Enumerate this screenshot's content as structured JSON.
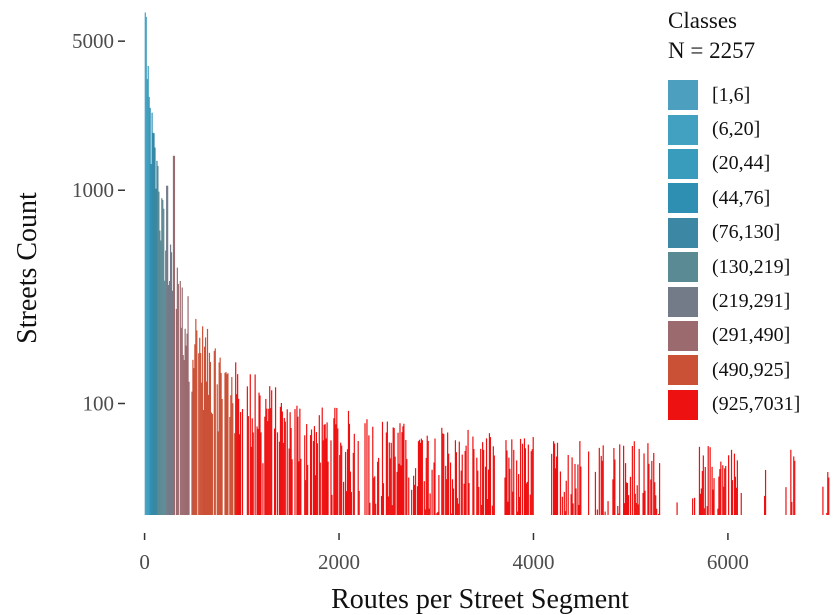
{
  "chart_data": {
    "type": "bar",
    "xlabel": "Routes per Street Segment",
    "ylabel": "Streets Count",
    "x_ticks": [
      0,
      2000,
      4000,
      6000
    ],
    "y_ticks": [
      100,
      1000,
      5000
    ],
    "y_scale": "log",
    "xlim": [
      -150,
      7050
    ],
    "ylim": [
      30,
      7000
    ],
    "grid": false,
    "legend_position": "right",
    "legend": {
      "title_line1": "Classes",
      "title_line2": "N = 2257",
      "classes": [
        {
          "label": "[1,6]",
          "color": "#4c9fbf",
          "range": [
            1,
            6
          ]
        },
        {
          "label": "(6,20]",
          "color": "#42a1c0",
          "range": [
            6,
            20
          ]
        },
        {
          "label": "(20,44]",
          "color": "#3a9cbd",
          "range": [
            20,
            44
          ]
        },
        {
          "label": "(44,76]",
          "color": "#2f8fb2",
          "range": [
            44,
            76
          ]
        },
        {
          "label": "(76,130]",
          "color": "#3b87a4",
          "range": [
            76,
            130
          ]
        },
        {
          "label": "(130,219]",
          "color": "#5a8a94",
          "range": [
            130,
            219
          ]
        },
        {
          "label": "(219,291]",
          "color": "#737a88",
          "range": [
            219,
            291
          ]
        },
        {
          "label": "(291,490]",
          "color": "#9a6a6f",
          "range": [
            291,
            490
          ]
        },
        {
          "label": "(490,925]",
          "color": "#cb5136",
          "range": [
            490,
            925
          ]
        },
        {
          "label": "(925,7031]",
          "color": "#ee1111",
          "range": [
            925,
            7031
          ]
        }
      ]
    },
    "profile": [
      {
        "x": 0,
        "y": 6200
      },
      {
        "x": 20,
        "y": 3000
      },
      {
        "x": 60,
        "y": 1900
      },
      {
        "x": 130,
        "y": 1000
      },
      {
        "x": 220,
        "y": 500
      },
      {
        "x": 300,
        "y": 330
      },
      {
        "x": 490,
        "y": 200
      },
      {
        "x": 700,
        "y": 140
      },
      {
        "x": 925,
        "y": 110
      },
      {
        "x": 1500,
        "y": 75
      },
      {
        "x": 2500,
        "y": 58
      },
      {
        "x": 3600,
        "y": 50
      },
      {
        "x": 7031,
        "y": 42
      }
    ],
    "peaks": [
      {
        "x": 5,
        "y": 6500
      },
      {
        "x": 35,
        "y": 2000
      },
      {
        "x": 130,
        "y": 1300
      },
      {
        "x": 230,
        "y": 1050
      },
      {
        "x": 300,
        "y": 1450
      }
    ],
    "gaps": [
      [
        3600,
        3700
      ],
      [
        4000,
        4200
      ],
      [
        4500,
        4650
      ],
      [
        5300,
        5700
      ],
      [
        6100,
        6600
      ],
      [
        6700,
        7000
      ]
    ]
  }
}
